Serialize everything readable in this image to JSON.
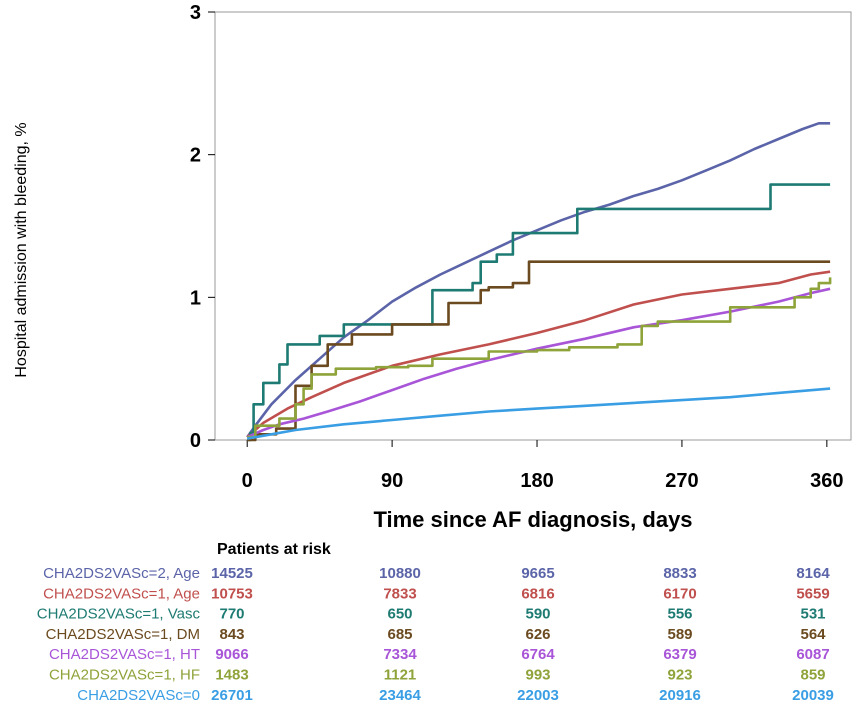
{
  "chart_data": {
    "type": "line",
    "xlabel": "Time since AF diagnosis, days",
    "ylabel": "Hospital admission with bleeding, %",
    "xlim": [
      -20,
      375
    ],
    "ylim": [
      0,
      3
    ],
    "x_ticks": [
      0,
      90,
      180,
      270,
      360
    ],
    "y_ticks": [
      0,
      1,
      2,
      3
    ],
    "grid": false,
    "series": [
      {
        "name": "CHA2DS2VASc=2, Age",
        "color": "#5b64a8",
        "step": false,
        "points": [
          [
            0,
            0.02
          ],
          [
            5,
            0.1
          ],
          [
            15,
            0.25
          ],
          [
            30,
            0.42
          ],
          [
            45,
            0.57
          ],
          [
            60,
            0.72
          ],
          [
            75,
            0.84
          ],
          [
            90,
            0.97
          ],
          [
            105,
            1.07
          ],
          [
            120,
            1.16
          ],
          [
            135,
            1.24
          ],
          [
            150,
            1.32
          ],
          [
            165,
            1.4
          ],
          [
            180,
            1.47
          ],
          [
            195,
            1.54
          ],
          [
            210,
            1.6
          ],
          [
            225,
            1.65
          ],
          [
            240,
            1.71
          ],
          [
            255,
            1.76
          ],
          [
            270,
            1.82
          ],
          [
            285,
            1.89
          ],
          [
            300,
            1.96
          ],
          [
            315,
            2.04
          ],
          [
            330,
            2.11
          ],
          [
            345,
            2.18
          ],
          [
            355,
            2.22
          ],
          [
            362,
            2.22
          ]
        ]
      },
      {
        "name": "CHA2DS2VASc=1, Age",
        "color": "#c0504d",
        "step": false,
        "points": [
          [
            0,
            0.02
          ],
          [
            10,
            0.12
          ],
          [
            25,
            0.22
          ],
          [
            40,
            0.3
          ],
          [
            60,
            0.4
          ],
          [
            90,
            0.52
          ],
          [
            120,
            0.6
          ],
          [
            150,
            0.67
          ],
          [
            180,
            0.75
          ],
          [
            210,
            0.84
          ],
          [
            240,
            0.95
          ],
          [
            270,
            1.02
          ],
          [
            300,
            1.06
          ],
          [
            330,
            1.1
          ],
          [
            350,
            1.16
          ],
          [
            362,
            1.18
          ]
        ]
      },
      {
        "name": "CHA2DS2VASc=1, Vasc",
        "color": "#1e7b73",
        "step": true,
        "points": [
          [
            0,
            0
          ],
          [
            2,
            0.05
          ],
          [
            4,
            0.25
          ],
          [
            10,
            0.4
          ],
          [
            20,
            0.53
          ],
          [
            25,
            0.67
          ],
          [
            45,
            0.73
          ],
          [
            60,
            0.81
          ],
          [
            75,
            0.81
          ],
          [
            90,
            0.81
          ],
          [
            100,
            0.81
          ],
          [
            115,
            1.05
          ],
          [
            140,
            1.1
          ],
          [
            145,
            1.25
          ],
          [
            155,
            1.3
          ],
          [
            165,
            1.45
          ],
          [
            185,
            1.45
          ],
          [
            205,
            1.62
          ],
          [
            325,
            1.79
          ],
          [
            362,
            1.79
          ]
        ]
      },
      {
        "name": "CHA2DS2VASc=1, DM",
        "color": "#6b4a1f",
        "step": true,
        "points": [
          [
            0,
            0
          ],
          [
            5,
            0.04
          ],
          [
            18,
            0.08
          ],
          [
            30,
            0.38
          ],
          [
            40,
            0.52
          ],
          [
            50,
            0.67
          ],
          [
            65,
            0.74
          ],
          [
            90,
            0.81
          ],
          [
            110,
            0.81
          ],
          [
            125,
            0.96
          ],
          [
            145,
            1.05
          ],
          [
            150,
            1.07
          ],
          [
            165,
            1.1
          ],
          [
            175,
            1.25
          ],
          [
            362,
            1.25
          ]
        ]
      },
      {
        "name": "CHA2DS2VASc=1, HT",
        "color": "#a855d8",
        "step": false,
        "points": [
          [
            0,
            0.02
          ],
          [
            10,
            0.07
          ],
          [
            20,
            0.11
          ],
          [
            35,
            0.15
          ],
          [
            50,
            0.2
          ],
          [
            70,
            0.27
          ],
          [
            90,
            0.35
          ],
          [
            110,
            0.43
          ],
          [
            130,
            0.5
          ],
          [
            150,
            0.56
          ],
          [
            180,
            0.64
          ],
          [
            210,
            0.71
          ],
          [
            240,
            0.79
          ],
          [
            270,
            0.84
          ],
          [
            300,
            0.9
          ],
          [
            330,
            0.97
          ],
          [
            350,
            1.03
          ],
          [
            362,
            1.06
          ]
        ]
      },
      {
        "name": "CHA2DS2VASc=1, HF",
        "color": "#8ea33a",
        "step": true,
        "points": [
          [
            0,
            0.02
          ],
          [
            5,
            0.1
          ],
          [
            20,
            0.15
          ],
          [
            30,
            0.25
          ],
          [
            35,
            0.36
          ],
          [
            40,
            0.46
          ],
          [
            55,
            0.5
          ],
          [
            75,
            0.5
          ],
          [
            80,
            0.51
          ],
          [
            100,
            0.52
          ],
          [
            115,
            0.57
          ],
          [
            150,
            0.62
          ],
          [
            180,
            0.63
          ],
          [
            200,
            0.65
          ],
          [
            230,
            0.67
          ],
          [
            245,
            0.8
          ],
          [
            255,
            0.83
          ],
          [
            300,
            0.93
          ],
          [
            340,
            1.0
          ],
          [
            350,
            1.06
          ],
          [
            355,
            1.1
          ],
          [
            362,
            1.14
          ]
        ]
      },
      {
        "name": "CHA2DS2VASc=0",
        "color": "#3a9ee4",
        "step": false,
        "points": [
          [
            0,
            0.01
          ],
          [
            15,
            0.04
          ],
          [
            30,
            0.07
          ],
          [
            60,
            0.11
          ],
          [
            90,
            0.14
          ],
          [
            120,
            0.17
          ],
          [
            150,
            0.2
          ],
          [
            180,
            0.22
          ],
          [
            210,
            0.24
          ],
          [
            240,
            0.26
          ],
          [
            270,
            0.28
          ],
          [
            300,
            0.3
          ],
          [
            330,
            0.33
          ],
          [
            362,
            0.36
          ]
        ]
      }
    ],
    "risk_table": {
      "title": "Patients at risk",
      "timepoints": [
        0,
        90,
        180,
        270,
        360
      ],
      "rows": [
        {
          "label": "CHA2DS2VASc=2, Age",
          "color": "#5b64a8",
          "values": [
            "14525",
            "10880",
            "9665",
            "8833",
            "8164"
          ]
        },
        {
          "label": "CHA2DS2VASc=1, Age",
          "color": "#c0504d",
          "values": [
            "10753",
            "7833",
            "6816",
            "6170",
            "5659"
          ]
        },
        {
          "label": "CHA2DS2VASc=1, Vasc",
          "color": "#1e7b73",
          "values": [
            "770",
            "650",
            "590",
            "556",
            "531"
          ]
        },
        {
          "label": "CHA2DS2VASc=1, DM",
          "color": "#6b4a1f",
          "values": [
            "843",
            "685",
            "626",
            "589",
            "564"
          ]
        },
        {
          "label": "CHA2DS2VASc=1, HT",
          "color": "#a855d8",
          "values": [
            "9066",
            "7334",
            "6764",
            "6379",
            "6087"
          ]
        },
        {
          "label": "CHA2DS2VASc=1, HF",
          "color": "#8ea33a",
          "values": [
            "1483",
            "1121",
            "993",
            "923",
            "859"
          ]
        },
        {
          "label": "CHA2DS2VASc=0",
          "color": "#3a9ee4",
          "values": [
            "26701",
            "23464",
            "22003",
            "20916",
            "20039"
          ]
        }
      ]
    }
  }
}
